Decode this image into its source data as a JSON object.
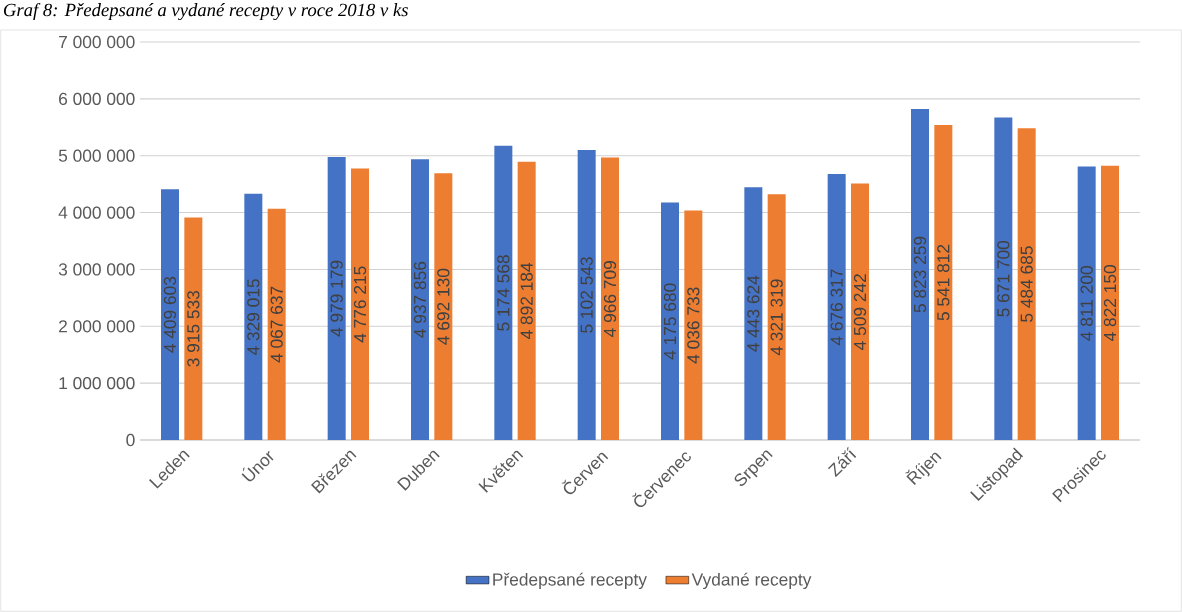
{
  "chart_data": {
    "type": "bar",
    "title": "Graf 8: Předepsané a vydané recepty v roce 2018 v ks",
    "categories": [
      "Leden",
      "Únor",
      "Březen",
      "Duben",
      "Květen",
      "Červen",
      "Červenec",
      "Srpen",
      "Září",
      "Říjen",
      "Listopad",
      "Prosinec"
    ],
    "series": [
      {
        "name": "Předepsané recepty",
        "color": "#4472c4",
        "values": [
          4409603,
          4329015,
          4979179,
          4937856,
          5174568,
          5102543,
          4175680,
          4443624,
          4676317,
          5823259,
          5671700,
          4811200
        ],
        "value_labels": [
          "4 409 603",
          "4 329 015",
          "4 979 179",
          "4 937 856",
          "5 174 568",
          "5 102 543",
          "4 175 680",
          "4 443 624",
          "4 676 317",
          "5 823 259",
          "5 671 700",
          "4 811 200"
        ]
      },
      {
        "name": "Vydané recepty",
        "color": "#ed7d31",
        "values": [
          3915533,
          4067637,
          4776215,
          4692130,
          4892184,
          4966709,
          4036733,
          4321319,
          4509242,
          5541812,
          5484685,
          4822150
        ],
        "value_labels": [
          "3 915 533",
          "4 067 637",
          "4 776 215",
          "4 692 130",
          "4 892 184",
          "4 966 709",
          "4 036 733",
          "4 321 319",
          "4 509 242",
          "5 541 812",
          "5 484 685",
          "4 822 150"
        ]
      }
    ],
    "ylim": [
      0,
      7000000
    ],
    "yticks": [
      0,
      {
        "value": 1000000,
        "label": "1 000 000"
      },
      {
        "value": 2000000,
        "label": "2 000 000"
      },
      {
        "value": 3000000,
        "label": "3 000 000"
      },
      {
        "value": 4000000,
        "label": "4 000 000"
      },
      {
        "value": 5000000,
        "label": "5 000 000"
      },
      {
        "value": 6000000,
        "label": "6 000 000"
      },
      {
        "value": 7000000,
        "label": "7 000 000"
      }
    ],
    "grid": "y",
    "legend": "bottom"
  }
}
